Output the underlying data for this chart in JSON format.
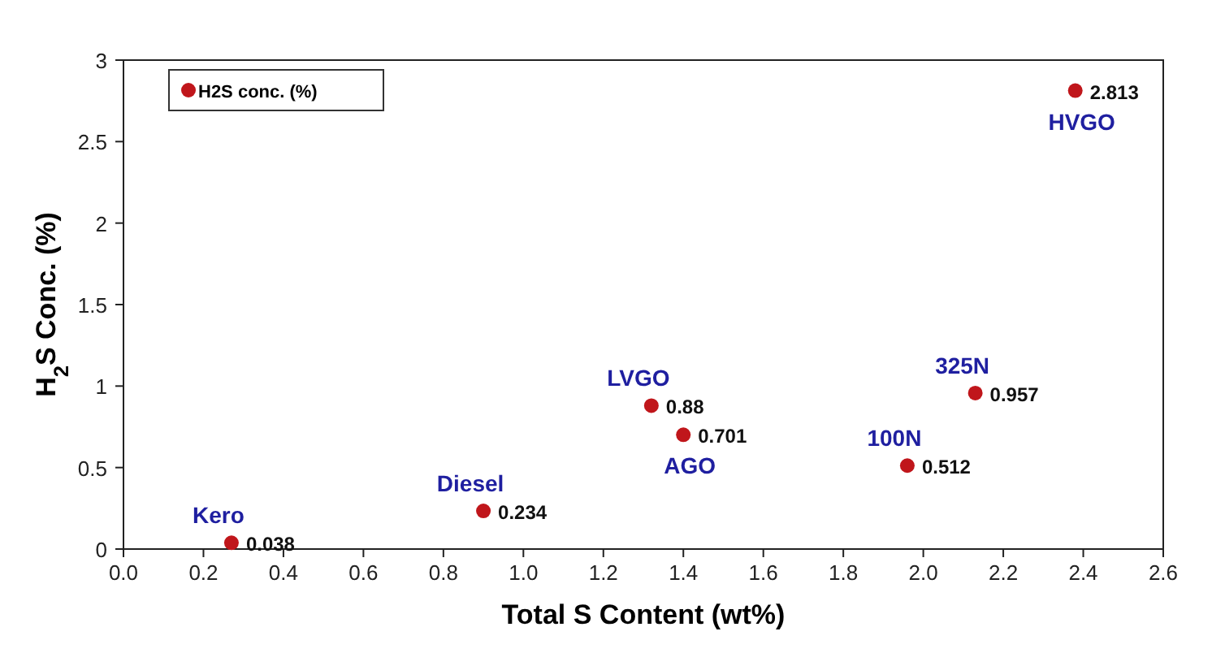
{
  "chart_data": {
    "type": "scatter",
    "xlabel": "Total S Content (wt%)",
    "ylabel": "H$_{2}$S Conc. (%)",
    "xlim": [
      0,
      2.6
    ],
    "xticks": [
      {
        "value": 0,
        "label": "0.0"
      },
      {
        "value": 0.2,
        "label": "0.2"
      },
      {
        "value": 0.4,
        "label": "0.4"
      },
      {
        "value": 0.6,
        "label": "0.6"
      },
      {
        "value": 0.8,
        "label": "0.8"
      },
      {
        "value": 1,
        "label": "1.0"
      },
      {
        "value": 1.2,
        "label": "1.2"
      },
      {
        "value": 1.4,
        "label": "1.4"
      },
      {
        "value": 1.6,
        "label": "1.6"
      },
      {
        "value": 1.8,
        "label": "1.8"
      },
      {
        "value": 2,
        "label": "2.0"
      },
      {
        "value": 2.2,
        "label": "2.2"
      },
      {
        "value": 2.4,
        "label": "2.4"
      },
      {
        "value": 2.6,
        "label": "2.6"
      }
    ],
    "ylim": [
      0,
      3
    ],
    "yticks": [
      0,
      0.5,
      1,
      1.5,
      2,
      2.5,
      3
    ],
    "series": [
      {
        "name": "H2S conc. (%)",
        "color": "#c0161b",
        "x": [
          0.27,
          0.9,
          1.32,
          1.4,
          1.96,
          2.13,
          2.38
        ],
        "values": [
          0.038,
          0.234,
          0.88,
          0.701,
          0.512,
          0.957,
          2.813
        ]
      }
    ],
    "data_labels": true,
    "marker": "circle",
    "legend": "top left",
    "grid": false,
    "annotations": [
      {
        "text": "Kero",
        "x": 0.27,
        "y": 0.038
      },
      {
        "text": "Diesel",
        "x": 0.9,
        "y": 0.234
      },
      {
        "text": "LVGO",
        "x": 1.32,
        "y": 0.88
      },
      {
        "text": "AGO",
        "x": 1.4,
        "y": 0.701
      },
      {
        "text": "100N",
        "x": 1.96,
        "y": 0.512
      },
      {
        "text": "325N",
        "x": 2.13,
        "y": 0.957
      },
      {
        "text": "HVGO",
        "x": 2.38,
        "y": 2.813
      }
    ]
  }
}
